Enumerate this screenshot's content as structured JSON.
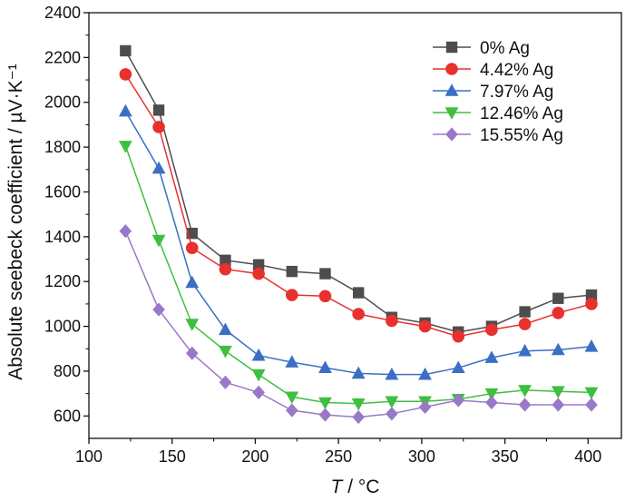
{
  "chart_data": {
    "type": "line",
    "xlabel": {
      "italic": "T",
      "rest": " / °C"
    },
    "ylabel": "Absolute seebeck coefficient / µV·K⁻¹",
    "xlim": [
      100,
      420
    ],
    "ylim": [
      500,
      2400
    ],
    "xticks": [
      100,
      150,
      200,
      250,
      300,
      350,
      400
    ],
    "yticks": [
      600,
      800,
      1000,
      1200,
      1400,
      1600,
      1800,
      2000,
      2200,
      2400
    ],
    "grid": false,
    "legend_position": "top-right",
    "x": [
      122,
      142,
      162,
      182,
      202,
      222,
      242,
      262,
      282,
      302,
      322,
      342,
      362,
      382,
      402
    ],
    "series": [
      {
        "name": "0% Ag",
        "color": "#4d4d4d",
        "marker": "square",
        "values": [
          2230,
          1965,
          1415,
          1295,
          1275,
          1245,
          1235,
          1150,
          1040,
          1015,
          975,
          1000,
          1065,
          1125,
          1140
        ]
      },
      {
        "name": "4.42% Ag",
        "color": "#e8302e",
        "marker": "circle",
        "values": [
          2125,
          1890,
          1350,
          1255,
          1235,
          1140,
          1135,
          1055,
          1025,
          1000,
          955,
          985,
          1010,
          1060,
          1100
        ]
      },
      {
        "name": "7.97% Ag",
        "color": "#3a6fc4",
        "marker": "triangle-up",
        "values": [
          1960,
          1705,
          1195,
          985,
          870,
          840,
          815,
          790,
          785,
          785,
          815,
          860,
          890,
          895,
          910
        ]
      },
      {
        "name": "12.46% Ag",
        "color": "#3fbf3f",
        "marker": "triangle-down",
        "values": [
          1805,
          1385,
          1010,
          890,
          785,
          685,
          660,
          655,
          665,
          665,
          675,
          700,
          715,
          710,
          705
        ]
      },
      {
        "name": "15.55% Ag",
        "color": "#9a78c8",
        "marker": "diamond",
        "values": [
          1425,
          1075,
          880,
          750,
          705,
          625,
          605,
          595,
          610,
          640,
          670,
          660,
          650,
          650,
          650
        ]
      }
    ]
  }
}
